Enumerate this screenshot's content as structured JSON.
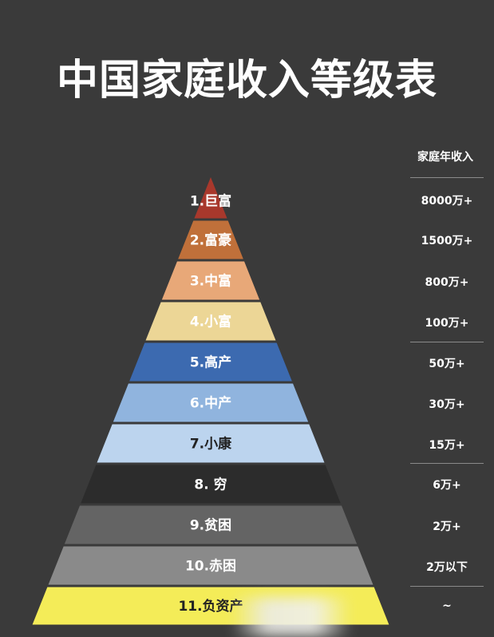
{
  "title": "中国家庭收入等级表",
  "income_header": "家庭年收入",
  "tiers": [
    {
      "label": "1.巨富",
      "income": "8000万+",
      "color": "#a8382c",
      "text_color": "#ffffff"
    },
    {
      "label": "2.富豪",
      "income": "1500万+",
      "color": "#c0703a",
      "text_color": "#ffffff"
    },
    {
      "label": "3.中富",
      "income": "800万+",
      "color": "#e8a878",
      "text_color": "#ffffff"
    },
    {
      "label": "4.小富",
      "income": "100万+",
      "color": "#ecd696",
      "text_color": "#ffffff"
    },
    {
      "label": "5.高产",
      "income": "50万+",
      "color": "#3c6ab0",
      "text_color": "#ffffff"
    },
    {
      "label": "6.中产",
      "income": "30万+",
      "color": "#90b4de",
      "text_color": "#ffffff"
    },
    {
      "label": "7.小康",
      "income": "15万+",
      "color": "#bcd4ee",
      "text_color": "#222222"
    },
    {
      "label": "8.  穷",
      "income": "6万+",
      "color": "#2c2c2c",
      "text_color": "#ffffff"
    },
    {
      "label": "9.贫困",
      "income": "2万+",
      "color": "#646464",
      "text_color": "#ffffff"
    },
    {
      "label": "10.赤困",
      "income": "2万以下",
      "color": "#8a8a8a",
      "text_color": "#ffffff"
    },
    {
      "label": "11.负资产",
      "income": "~",
      "color": "#f4ec58",
      "text_color": "#222222"
    }
  ]
}
